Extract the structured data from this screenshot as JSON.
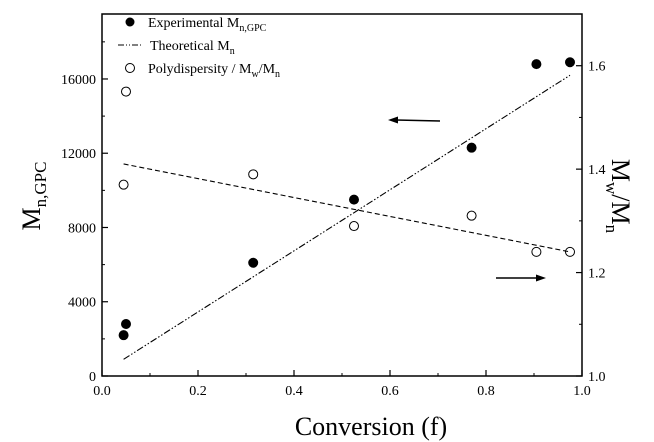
{
  "chart_data": {
    "type": "scatter",
    "xlabel": "Conversion (f)",
    "ylabel_left": {
      "main": "M",
      "sub": "n,GPC"
    },
    "ylabel_right": {
      "a": "M",
      "a_sub": "w",
      "sep": "/",
      "b": "M",
      "b_sub": "n"
    },
    "x_ticks": [
      "0.0",
      "0.2",
      "0.4",
      "0.6",
      "0.8",
      "1.0"
    ],
    "yl_ticks": [
      "0",
      "4000",
      "8000",
      "12000",
      "16000"
    ],
    "yr_ticks": [
      "1.0",
      "1.2",
      "1.4",
      "1.6"
    ],
    "xlim": [
      0,
      1
    ],
    "ylim_left": [
      0,
      19500
    ],
    "ylim_right": [
      1.0,
      1.7
    ],
    "legend": {
      "position": "top-left",
      "entries": [
        {
          "marker": "filled-circle",
          "text": "Experimental M",
          "sub": "n,GPC"
        },
        {
          "marker": "dash-dot-dot",
          "text": "Theoretical M",
          "sub": "n"
        },
        {
          "marker": "open-circle",
          "text": "Polydispersity / M",
          "sub": "w",
          "tail": "/M",
          "tail_sub": "n"
        }
      ]
    },
    "series": [
      {
        "name": "Experimental Mn,GPC",
        "axis": "left",
        "marker": "filled-circle",
        "x": [
          0.045,
          0.05,
          0.315,
          0.525,
          0.77,
          0.905,
          0.975
        ],
        "y": [
          2200,
          2800,
          6100,
          9500,
          12300,
          16800,
          16900
        ]
      },
      {
        "name": "Theoretical Mn",
        "axis": "left",
        "line": "dash-dot-dot",
        "x": [
          0.045,
          0.975
        ],
        "y": [
          900,
          16200
        ]
      },
      {
        "name": "Polydispersity / Mw/Mn",
        "axis": "right",
        "marker": "open-circle",
        "x": [
          0.045,
          0.05,
          0.315,
          0.525,
          0.77,
          0.905,
          0.975
        ],
        "y": [
          1.37,
          1.55,
          1.39,
          1.29,
          1.31,
          1.24,
          1.24
        ]
      },
      {
        "axis": "right",
        "line": "dashed",
        "x": [
          0.045,
          0.975
        ],
        "y": [
          1.41,
          1.24
        ]
      }
    ],
    "annotations": [
      {
        "type": "arrow",
        "direction": "left",
        "points_to": "left-axis"
      },
      {
        "type": "arrow",
        "direction": "right",
        "points_to": "right-axis"
      }
    ]
  }
}
